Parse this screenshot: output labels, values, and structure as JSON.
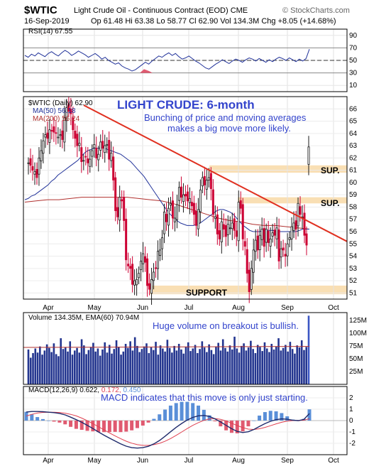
{
  "header": {
    "symbol": "$WTIC",
    "name": "Light Crude Oil - Continuous Contract (EOD)  CME",
    "source": "© StockCharts.com",
    "date": "16-Sep-2019",
    "quote": "Op 61.48  Hi 63.38  Lo 58.77  Cl 62.90  Vol 134.3M  Chg +8.05 (+14.68%)"
  },
  "annotations": {
    "title": "LIGHT CRUDE: 6-month",
    "sub1": "Bunching of price and moving averages",
    "sub2": "makes a big move more likely.",
    "volume_note": "Huge volume on breakout is bullish.",
    "macd_note": "MACD indicates that this move is only just starting.",
    "support": "SUPPORT",
    "sup1": "SUP.",
    "sup2": "SUP."
  },
  "panels": {
    "rsi_legend": "RSI(14) 67.55",
    "price_legend": "$WTIC (Daily) 62.90",
    "ma50_legend": "MA(50) 56.18",
    "ma200_legend": "MA(200) 56.24",
    "volume_legend": "Volume 134.35M, EMA(60) 70.94M",
    "macd_legend_a": "MACD(12,26,9) 0.622,",
    "macd_legend_b": "0.172,",
    "macd_legend_c": "0.450"
  },
  "colors": {
    "up": "#1a1a1a",
    "down": "#cc0033",
    "ma50": "#22339a",
    "ma200": "#b0302e",
    "trendline": "#e03020",
    "zone": "#f9dfb4",
    "volume": "#23358f",
    "macd": "#1f2a6b",
    "signal": "#e04050",
    "hist_pos": "#5a8fd8",
    "hist_neg": "#e05a70",
    "annotation": "#3344cc"
  },
  "chart_data": {
    "type": "candlestick",
    "months": [
      "Apr",
      "May",
      "Jun",
      "Jul",
      "Aug",
      "Sep",
      "Oct"
    ],
    "price_axis": [
      51,
      52,
      53,
      54,
      55,
      56,
      57,
      58,
      59,
      60,
      61,
      62,
      63,
      64,
      65,
      66
    ],
    "price_range": [
      50.5,
      67
    ],
    "rsi_axis": [
      10,
      30,
      50,
      70,
      90
    ],
    "volume_axis": [
      "25M",
      "50M",
      "75M",
      "100M",
      "125M"
    ],
    "macd_axis": [
      -2,
      -1,
      0,
      1,
      2
    ],
    "closes": [
      61.6,
      61.4,
      61.0,
      60.9,
      60.4,
      62.0,
      62.6,
      63.4,
      63.9,
      63.6,
      64.3,
      64.2,
      64.1,
      64.0,
      63.7,
      63.9,
      63.5,
      65.3,
      66.1,
      65.8,
      65.6,
      64.3,
      63.6,
      63.0,
      63.2,
      61.7,
      61.8,
      62.1,
      61.6,
      61.9,
      62.6,
      63.1,
      62.0,
      62.3,
      63.3,
      62.8,
      63.0,
      63.1,
      61.9,
      62.4,
      60.2,
      57.7,
      57.2,
      58.8,
      58.5,
      56.9,
      53.7,
      53.2,
      53.0,
      51.7,
      52.0,
      52.1,
      52.6,
      53.6,
      54.2,
      53.5,
      51.6,
      51.3,
      52.1,
      52.7,
      53.0,
      54.4,
      54.5,
      55.5,
      57.6,
      56.8,
      57.9,
      58.3,
      57.1,
      57.1,
      58.2,
      59.6,
      58.8,
      59.0,
      58.9,
      58.5,
      58.7,
      58.1,
      57.4,
      56.5,
      57.8,
      59.4,
      60.4,
      59.8,
      60.2,
      60.4,
      59.5,
      57.4,
      57.2,
      55.8,
      55.4,
      56.8,
      56.2,
      55.6,
      56.6,
      56.3,
      56.7,
      56.1,
      55.6,
      58.4,
      57.9,
      55.4,
      54.8,
      52.6,
      51.1,
      53.0,
      54.5,
      55.3,
      54.5,
      55.7,
      56.2,
      54.8,
      56.2,
      55.1,
      55.4,
      55.9,
      55.7,
      56.3,
      53.6,
      54.6,
      54.5,
      54.0,
      55.0,
      55.5,
      56.4,
      56.7,
      56.2,
      58.3,
      57.4,
      57.2,
      55.7,
      54.9,
      62.9
    ],
    "ma50": [
      58.6,
      58.7,
      58.9,
      59.0,
      59.2,
      59.4,
      59.6,
      59.8,
      60.1,
      60.3,
      60.6,
      60.8,
      61.0,
      61.2,
      61.4,
      61.6,
      61.8,
      62.1,
      62.4,
      62.6,
      62.7,
      62.8,
      62.8,
      62.8,
      62.8,
      62.7,
      62.6,
      62.5,
      62.4,
      62.3,
      62.1,
      61.9,
      61.7,
      61.4,
      61.1,
      60.8,
      60.5,
      60.1,
      59.7,
      59.3,
      58.9,
      58.5,
      58.1,
      57.7,
      57.4,
      57.1,
      56.9,
      56.7,
      56.6,
      56.5,
      56.5,
      56.5,
      56.6,
      56.7,
      56.9,
      57.1,
      57.3,
      57.5,
      57.7,
      57.8,
      57.8,
      57.7,
      57.6,
      57.4,
      57.1,
      56.8,
      56.5,
      56.3,
      56.1,
      56.0,
      56.0,
      56.0,
      56.1,
      56.1,
      56.1,
      56.1,
      56.0,
      56.0,
      56.0,
      56.0,
      56.0,
      56.0,
      56.0,
      56.1,
      56.2,
      56.2,
      56.2
    ],
    "ma200": [
      58.4,
      58.5,
      58.6,
      58.6,
      58.7,
      58.8,
      58.8,
      58.8,
      58.8,
      58.8,
      58.7,
      58.6,
      58.5,
      58.3,
      58.0,
      57.7,
      57.4,
      57.1,
      56.9,
      56.8,
      56.6,
      56.5,
      56.5,
      56.4,
      56.3,
      56.2
    ],
    "trendline": {
      "start": 66.3,
      "end": 55.2
    },
    "support": [
      50.9,
      51.6
    ],
    "sup_zones": [
      [
        60.8,
        61.4
      ],
      [
        58.3,
        58.8
      ]
    ],
    "volume_M": [
      68,
      52,
      61,
      70,
      62,
      74,
      58,
      66,
      78,
      71,
      63,
      80,
      59,
      55,
      90,
      69,
      72,
      64,
      84,
      58,
      66,
      71,
      62,
      88,
      76,
      59,
      67,
      73,
      81,
      64,
      70,
      56,
      68,
      82,
      62,
      77,
      60,
      69,
      86,
      73,
      58,
      64,
      79,
      71,
      84,
      66,
      92,
      75,
      63,
      69,
      74,
      80,
      61,
      72,
      67,
      83,
      58,
      76,
      70,
      64,
      87,
      71,
      62,
      75,
      66,
      79,
      68,
      60,
      73,
      82,
      65,
      70,
      77,
      61,
      69,
      84,
      72,
      63,
      78,
      67,
      59,
      74,
      81,
      66,
      88,
      71,
      64,
      76,
      68,
      93,
      70,
      62,
      75,
      80,
      66,
      72,
      85,
      69,
      61,
      77,
      73,
      65,
      82,
      70,
      63,
      79,
      68,
      74,
      90,
      66,
      71,
      77,
      64,
      83,
      69,
      60,
      76,
      72,
      86,
      67,
      73,
      134
    ],
    "volume_ema": 72,
    "rsi": [
      58,
      55,
      60,
      57,
      62,
      59,
      56,
      61,
      64,
      60,
      57,
      62,
      66,
      63,
      58,
      61,
      65,
      62,
      59,
      55,
      58,
      61,
      57,
      52,
      55,
      50,
      47,
      44,
      46,
      41,
      38,
      36,
      33,
      35,
      39,
      43,
      47,
      44,
      49,
      53,
      57,
      55,
      59,
      62,
      58,
      61,
      56,
      52,
      54,
      57,
      53,
      49,
      46,
      42,
      38,
      36,
      40,
      44,
      47,
      51,
      48,
      45,
      49,
      52,
      50,
      47,
      51,
      54,
      52,
      49,
      53,
      50,
      47,
      51,
      48,
      52,
      55,
      53,
      50,
      54,
      51,
      48,
      52,
      49,
      53,
      68
    ],
    "macd": [
      0.75,
      0.8,
      0.8,
      0.78,
      0.74,
      0.7,
      0.63,
      0.5,
      0.3,
      0.08,
      -0.15,
      -0.42,
      -0.7,
      -1.0,
      -1.28,
      -1.55,
      -1.8,
      -2.05,
      -2.25,
      -2.38,
      -2.42,
      -2.38,
      -2.26,
      -2.05,
      -1.75,
      -1.38,
      -0.98,
      -0.6,
      -0.25,
      0.05,
      0.28,
      0.42,
      0.45,
      0.36,
      0.15,
      -0.12,
      -0.42,
      -0.72,
      -0.95,
      -1.05,
      -0.98,
      -0.78,
      -0.52,
      -0.26,
      -0.06,
      0.08,
      0.15,
      0.12,
      0.04,
      0.0,
      0.1,
      0.62
    ],
    "signal": [
      0.4,
      0.55,
      0.66,
      0.72,
      0.74,
      0.74,
      0.71,
      0.65,
      0.55,
      0.41,
      0.22,
      -0.01,
      -0.27,
      -0.54,
      -0.82,
      -1.09,
      -1.35,
      -1.59,
      -1.81,
      -1.99,
      -2.12,
      -2.18,
      -2.18,
      -2.12,
      -2.0,
      -1.82,
      -1.58,
      -1.3,
      -1.0,
      -0.7,
      -0.42,
      -0.18,
      0.02,
      0.15,
      0.18,
      0.11,
      -0.03,
      -0.23,
      -0.44,
      -0.62,
      -0.75,
      -0.78,
      -0.72,
      -0.6,
      -0.45,
      -0.29,
      -0.15,
      -0.05,
      0.0,
      0.01,
      0.03,
      0.17
    ]
  }
}
